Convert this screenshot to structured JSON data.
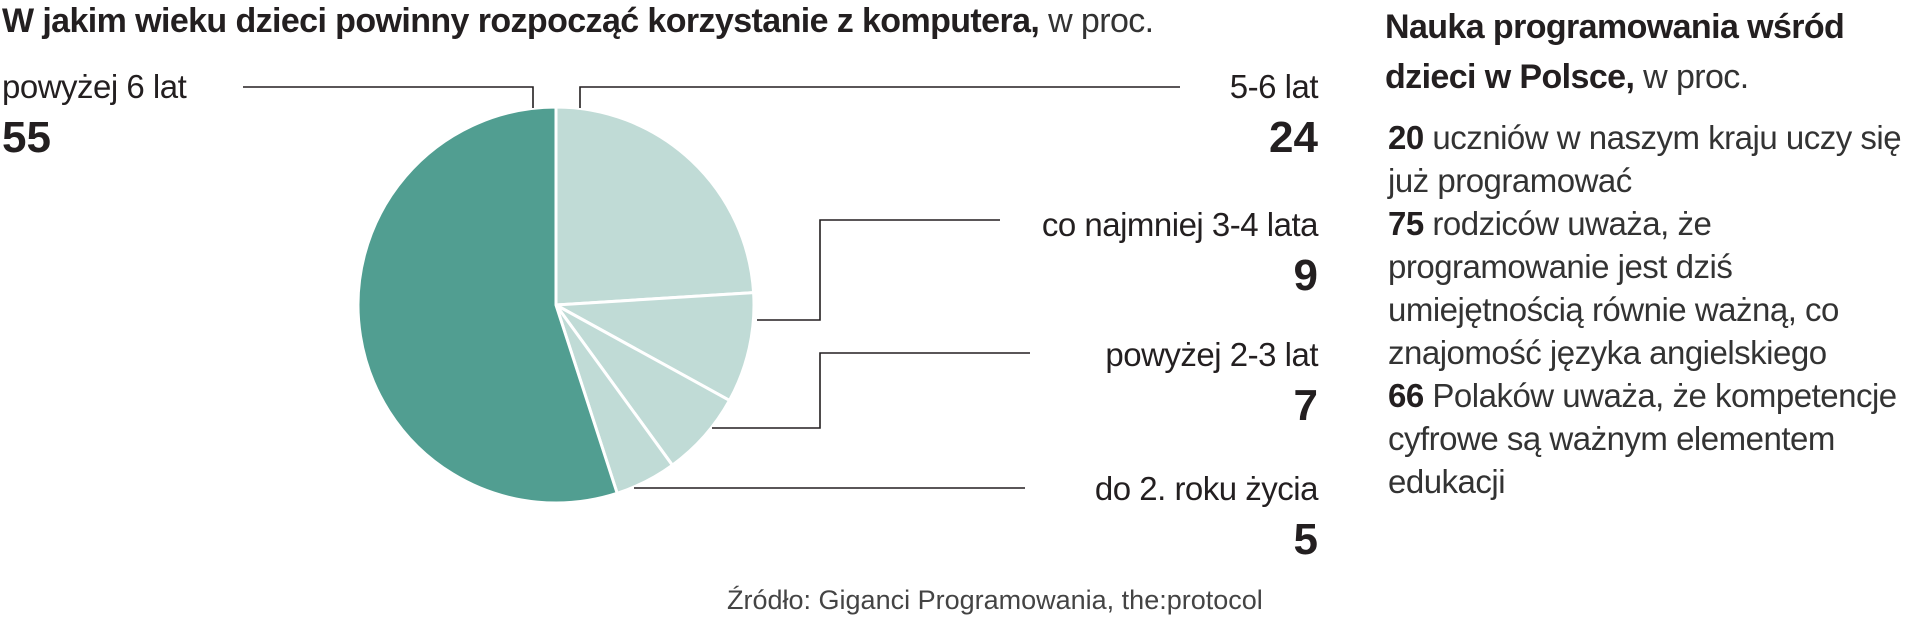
{
  "chart_data": {
    "type": "pie",
    "title": "W jakim wieku dzieci powinny rozpocząć korzystanie z komputera,",
    "unit": "w proc.",
    "slices": [
      {
        "label": "5-6 lat",
        "value": 24,
        "value_label": "24",
        "color": "#c0dbd6"
      },
      {
        "label": "co najmniej 3-4 lata",
        "value": 9,
        "value_label": "9",
        "color": "#c0dbd6"
      },
      {
        "label": "powyżej 2-3 lat",
        "value": 7,
        "value_label": "7",
        "color": "#c0dbd6"
      },
      {
        "label": "do 2. roku życia",
        "value": 5,
        "value_label": "5",
        "color": "#c0dbd6"
      },
      {
        "label": "powyżej 6 lat",
        "value": 55,
        "value_label": "55",
        "color": "#519e91"
      }
    ]
  },
  "side": {
    "title": "Nauka programowania wśród dzieci w Polsce,",
    "unit": "w proc.",
    "facts": [
      {
        "number": "20",
        "text": "uczniów w naszym kraju uczy się już programować"
      },
      {
        "number": "75",
        "text": "rodziców uważa, że programowanie jest dziś umiejętnością równie ważną, co znajomość  języka angielskiego"
      },
      {
        "number": "66",
        "text": "Polaków uważa, że kompetencje cyfrowe są ważnym elementem edukacji"
      }
    ]
  },
  "source": "Źródło: Giganci Programowania, the:protocol",
  "colors": {
    "dark": "#519e91",
    "light": "#c0dbd6",
    "text": "#231f20",
    "leader": "#231f20"
  }
}
